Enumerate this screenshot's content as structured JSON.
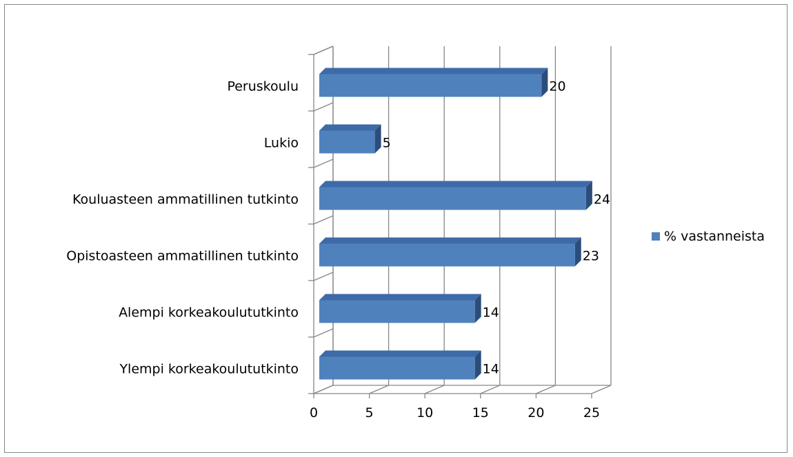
{
  "chart_data": {
    "type": "bar",
    "orientation": "horizontal",
    "style": "3d",
    "categories": [
      "Peruskoulu",
      "Lukio",
      "Kouluasteen ammatillinen tutkinto",
      "Opistoasteen ammatillinen tutkinto",
      "Alempi korkeakoulututkinto",
      "Ylempi korkeakoulututkinto"
    ],
    "series": [
      {
        "name": "% vastanneista",
        "values": [
          20,
          5,
          24,
          23,
          14,
          14
        ],
        "color": "#4F81BD"
      }
    ],
    "xlim": [
      0,
      25
    ],
    "xticks": [
      0,
      5,
      10,
      15,
      20,
      25
    ],
    "grid": true,
    "legend": "right",
    "data_labels": true
  }
}
